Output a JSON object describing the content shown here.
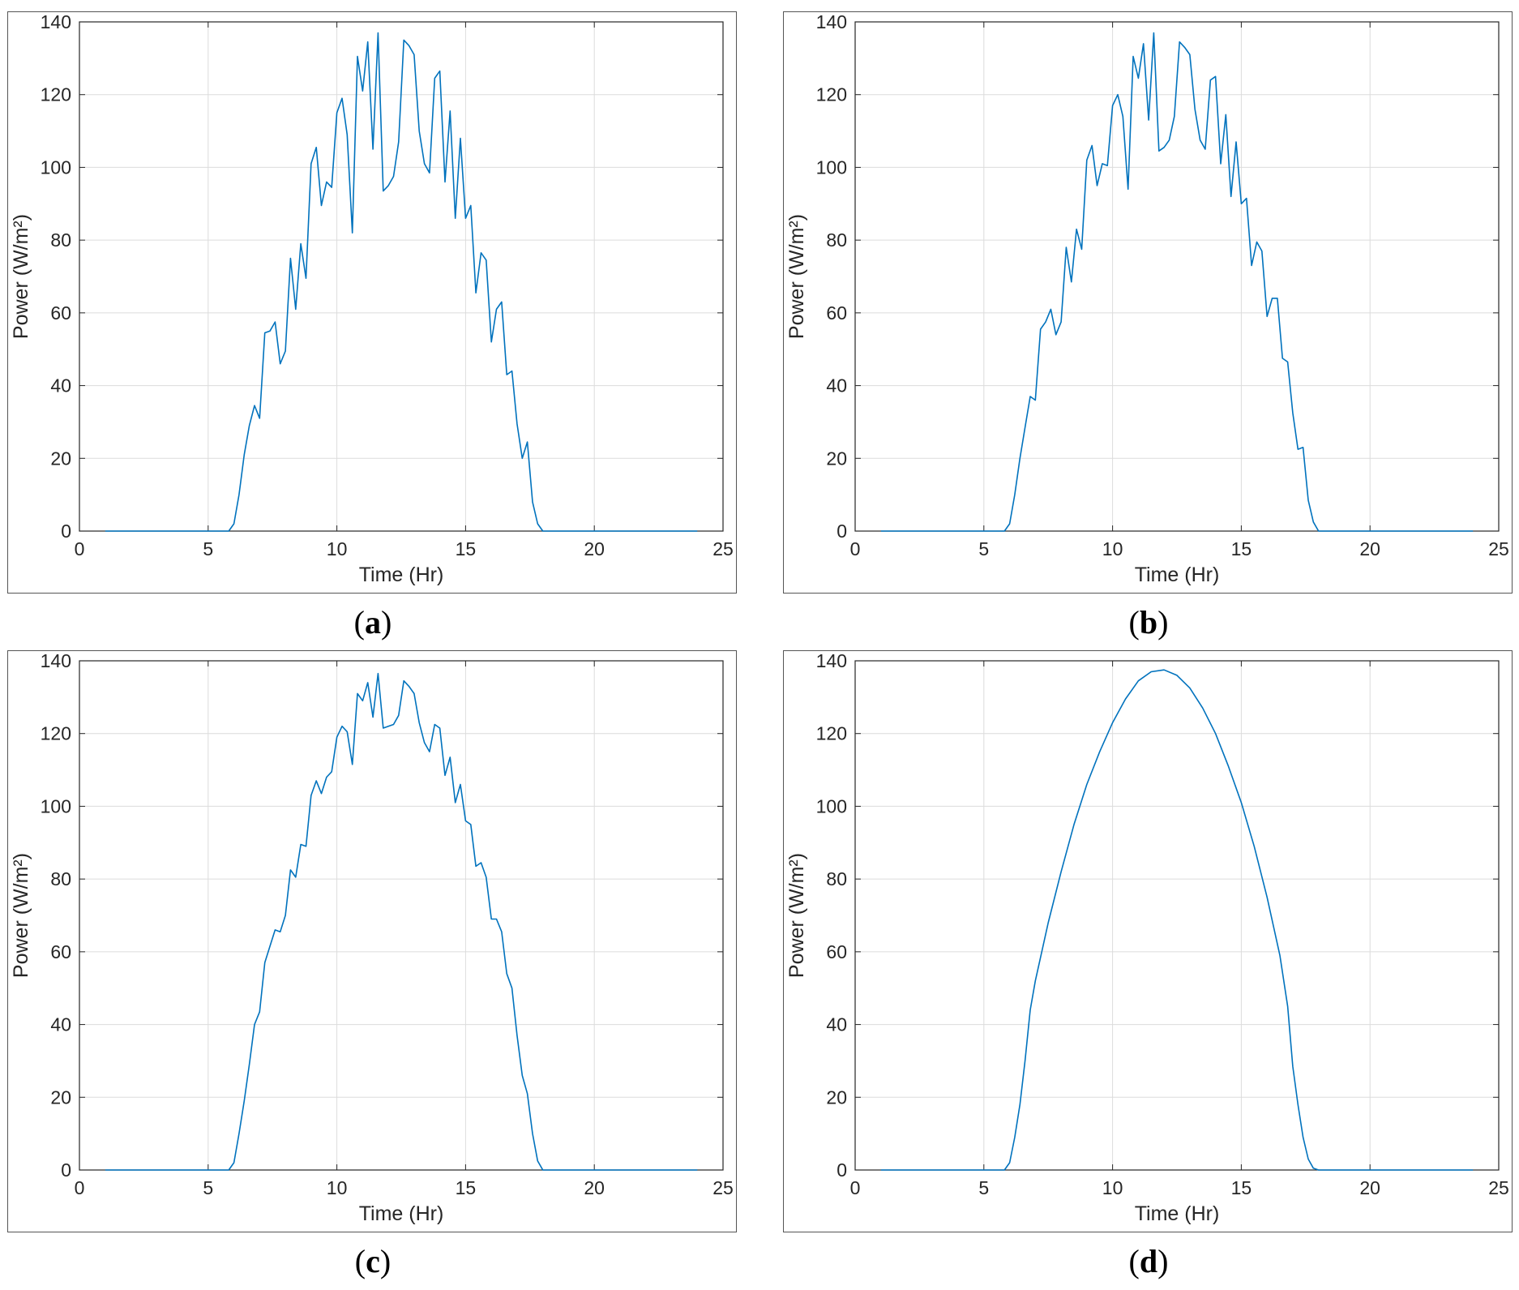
{
  "style": {
    "line_color": "#0072BD",
    "grid_color": "#dcdcdc",
    "axis_color": "#262626"
  },
  "panels": [
    {
      "id": "a",
      "caption_open": "(",
      "caption_letter": "a",
      "caption_close": ")"
    },
    {
      "id": "b",
      "caption_open": "(",
      "caption_letter": "b",
      "caption_close": ")"
    },
    {
      "id": "c",
      "caption_open": "(",
      "caption_letter": "c",
      "caption_close": ")"
    },
    {
      "id": "d",
      "caption_open": "(",
      "caption_letter": "d",
      "caption_close": ")"
    }
  ],
  "chart_data": [
    {
      "type": "line",
      "panel": "a",
      "xlabel": "Time (Hr)",
      "ylabel": "Power (W/m²)",
      "xlim": [
        0,
        25
      ],
      "ylim": [
        0,
        140
      ],
      "xticks": [
        0,
        5,
        10,
        15,
        20,
        25
      ],
      "yticks": [
        0,
        20,
        40,
        60,
        80,
        100,
        120,
        140
      ],
      "grid": true,
      "series": [
        {
          "x": [
            1,
            5.8,
            6.0,
            6.2,
            6.4,
            6.6,
            6.8,
            7.0,
            7.2,
            7.4,
            7.6,
            7.8,
            8.0,
            8.2,
            8.4,
            8.6,
            8.8,
            9.0,
            9.2,
            9.4,
            9.6,
            9.8,
            10.0,
            10.2,
            10.4,
            10.6,
            10.8,
            11.0,
            11.2,
            11.4,
            11.6,
            11.8,
            12.0,
            12.2,
            12.4,
            12.6,
            12.8,
            13.0,
            13.2,
            13.4,
            13.6,
            13.8,
            14.0,
            14.2,
            14.4,
            14.6,
            14.8,
            15.0,
            15.2,
            15.4,
            15.6,
            15.8,
            16.0,
            16.2,
            16.4,
            16.6,
            16.8,
            17.0,
            17.2,
            17.4,
            17.6,
            17.8,
            18.0,
            24
          ],
          "y": [
            0,
            0,
            2,
            10,
            21,
            29,
            34.5,
            31,
            54.5,
            55,
            57.5,
            46,
            49.5,
            75,
            61,
            79,
            69.5,
            101,
            105.5,
            89.5,
            96,
            94.5,
            115,
            119,
            109,
            82,
            130.5,
            121,
            134.5,
            105,
            137,
            93.5,
            95,
            97.5,
            107,
            135,
            133.5,
            131,
            110,
            101,
            98.5,
            124.5,
            126.5,
            96,
            115.5,
            86,
            108,
            86,
            89.5,
            65.5,
            76.5,
            74.5,
            52,
            61,
            63,
            43,
            44,
            29.5,
            20,
            24.5,
            8,
            2,
            0,
            0
          ]
        }
      ]
    },
    {
      "type": "line",
      "panel": "b",
      "xlabel": "Time (Hr)",
      "ylabel": "Power (W/m²)",
      "xlim": [
        0,
        25
      ],
      "ylim": [
        0,
        140
      ],
      "xticks": [
        0,
        5,
        10,
        15,
        20,
        25
      ],
      "yticks": [
        0,
        20,
        40,
        60,
        80,
        100,
        120,
        140
      ],
      "grid": true,
      "series": [
        {
          "x": [
            1,
            5.8,
            6.0,
            6.2,
            6.4,
            6.6,
            6.8,
            7.0,
            7.2,
            7.4,
            7.6,
            7.8,
            8.0,
            8.2,
            8.4,
            8.6,
            8.8,
            9.0,
            9.2,
            9.4,
            9.6,
            9.8,
            10.0,
            10.2,
            10.4,
            10.6,
            10.8,
            11.0,
            11.2,
            11.4,
            11.6,
            11.8,
            12.0,
            12.2,
            12.4,
            12.6,
            12.8,
            13.0,
            13.2,
            13.4,
            13.6,
            13.8,
            14.0,
            14.2,
            14.4,
            14.6,
            14.8,
            15.0,
            15.2,
            15.4,
            15.6,
            15.8,
            16.0,
            16.2,
            16.4,
            16.6,
            16.8,
            17.0,
            17.2,
            17.4,
            17.6,
            17.8,
            18.0,
            24
          ],
          "y": [
            0,
            0,
            2,
            10,
            20,
            28.5,
            37,
            36,
            55.5,
            57.5,
            61,
            54,
            57.5,
            78,
            68.5,
            83,
            77.5,
            102,
            106,
            95,
            101,
            100.5,
            117,
            120,
            114,
            94,
            130.5,
            124.5,
            134,
            113,
            137,
            104.5,
            105.5,
            107.5,
            114,
            134.5,
            133,
            131,
            116,
            107.5,
            105,
            124,
            125,
            101,
            114.5,
            92,
            107,
            90,
            91.5,
            73,
            79.5,
            77,
            59,
            64,
            64,
            47.5,
            46.5,
            32.5,
            22.5,
            23,
            8.5,
            2.5,
            0,
            0
          ]
        }
      ]
    },
    {
      "type": "line",
      "panel": "c",
      "xlabel": "Time (Hr)",
      "ylabel": "Power (W/m²)",
      "xlim": [
        0,
        25
      ],
      "ylim": [
        0,
        140
      ],
      "xticks": [
        0,
        5,
        10,
        15,
        20,
        25
      ],
      "yticks": [
        0,
        20,
        40,
        60,
        80,
        100,
        120,
        140
      ],
      "grid": true,
      "series": [
        {
          "x": [
            1,
            5.8,
            6.0,
            6.2,
            6.4,
            6.6,
            6.8,
            7.0,
            7.2,
            7.4,
            7.6,
            7.8,
            8.0,
            8.2,
            8.4,
            8.6,
            8.8,
            9.0,
            9.2,
            9.4,
            9.6,
            9.8,
            10.0,
            10.2,
            10.4,
            10.6,
            10.8,
            11.0,
            11.2,
            11.4,
            11.6,
            11.8,
            12.0,
            12.2,
            12.4,
            12.6,
            12.8,
            13.0,
            13.2,
            13.4,
            13.6,
            13.8,
            14.0,
            14.2,
            14.4,
            14.6,
            14.8,
            15.0,
            15.2,
            15.4,
            15.6,
            15.8,
            16.0,
            16.2,
            16.4,
            16.6,
            16.8,
            17.0,
            17.2,
            17.4,
            17.6,
            17.8,
            18.0,
            24
          ],
          "y": [
            0,
            0,
            2,
            10,
            19,
            29,
            40,
            43.5,
            57,
            61.5,
            66,
            65.5,
            70,
            82.5,
            80.5,
            89.5,
            89,
            103,
            107,
            103.5,
            108,
            109.5,
            119,
            122,
            120.5,
            111.5,
            131,
            129,
            134,
            124.5,
            136.5,
            121.5,
            122,
            122.5,
            125,
            134.5,
            133,
            131,
            123,
            117.5,
            115,
            122.5,
            121.5,
            108.5,
            113.5,
            101,
            106,
            96,
            95,
            83.5,
            84.5,
            80.5,
            69,
            69,
            65.5,
            54,
            50,
            37,
            26,
            21,
            10,
            2.5,
            0,
            0
          ]
        }
      ]
    },
    {
      "type": "line",
      "panel": "d",
      "xlabel": "Time (Hr)",
      "ylabel": "Power (W/m²)",
      "xlim": [
        0,
        25
      ],
      "ylim": [
        0,
        140
      ],
      "xticks": [
        0,
        5,
        10,
        15,
        20,
        25
      ],
      "yticks": [
        0,
        20,
        40,
        60,
        80,
        100,
        120,
        140
      ],
      "grid": true,
      "series": [
        {
          "x": [
            1,
            5.8,
            6.0,
            6.2,
            6.4,
            6.6,
            6.8,
            7.0,
            7.5,
            8.0,
            8.5,
            9.0,
            9.5,
            10.0,
            10.5,
            11.0,
            11.5,
            12.0,
            12.5,
            13.0,
            13.5,
            14.0,
            14.5,
            15.0,
            15.5,
            16.0,
            16.5,
            16.8,
            17.0,
            17.2,
            17.4,
            17.6,
            17.8,
            18.0,
            24
          ],
          "y": [
            0,
            0,
            2,
            9,
            18,
            30,
            44,
            52,
            68,
            82,
            95,
            106,
            115,
            123,
            129.5,
            134.5,
            137,
            137.5,
            136,
            132.5,
            127,
            120,
            111,
            101,
            89,
            75,
            59,
            45,
            28.5,
            18,
            9,
            3,
            0.5,
            0,
            0
          ]
        }
      ]
    }
  ]
}
